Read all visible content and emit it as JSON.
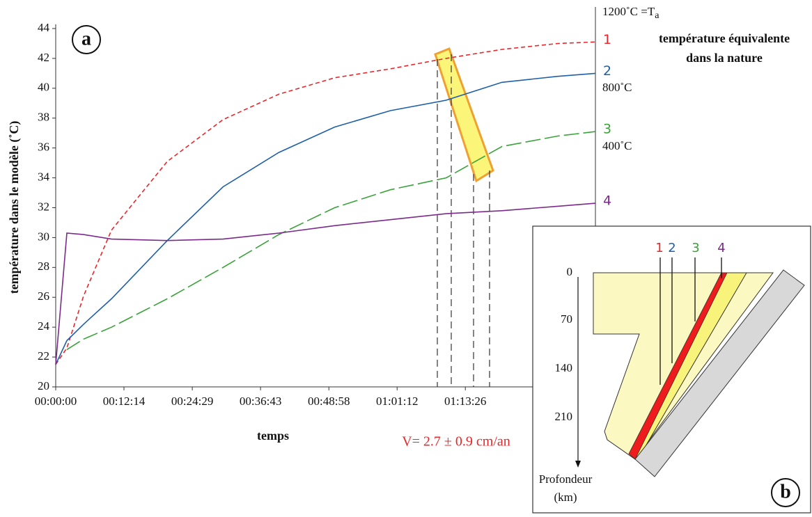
{
  "chart_data": {
    "type": "line",
    "ylabel": "température dans le modèle (˚C)",
    "xlabel": "temps",
    "panel_label": "a",
    "x": [
      0,
      120,
      300,
      600,
      1200,
      1800,
      2400,
      3000,
      3600,
      4200,
      4800,
      5400,
      5805
    ],
    "xlim": [
      0,
      5805
    ],
    "xticks": [
      {
        "value": 0,
        "label": "00:00:00"
      },
      {
        "value": 734,
        "label": "00:12:14"
      },
      {
        "value": 1469,
        "label": "00:24:29"
      },
      {
        "value": 2203,
        "label": "00:36:43"
      },
      {
        "value": 2938,
        "label": "00:48:58"
      },
      {
        "value": 3672,
        "label": "01:01:12"
      },
      {
        "value": 4406,
        "label": "01:13:26"
      }
    ],
    "ylim": [
      20,
      44
    ],
    "yticks": [
      20,
      22,
      24,
      26,
      28,
      30,
      32,
      34,
      36,
      38,
      40,
      42,
      44
    ],
    "grid": false,
    "series": [
      {
        "name": "1",
        "color": "#e8262a",
        "dash": "6,4",
        "values": [
          21.5,
          22.6,
          26.1,
          30.5,
          35.1,
          37.9,
          39.6,
          40.7,
          41.3,
          42.0,
          42.6,
          43.0,
          43.1
        ]
      },
      {
        "name": "2",
        "color": "#1f5fa8",
        "dash": "none",
        "values": [
          21.5,
          23.1,
          24.2,
          25.9,
          29.8,
          33.4,
          35.7,
          37.4,
          38.5,
          39.2,
          40.4,
          40.8,
          41.0
        ]
      },
      {
        "name": "3",
        "color": "#3aa23a",
        "dash": "22,6",
        "values": [
          null,
          22.5,
          23.2,
          24.0,
          25.9,
          28.0,
          30.2,
          32.0,
          33.2,
          34.0,
          36.1,
          36.8,
          37.1
        ]
      },
      {
        "name": "4",
        "color": "#7b2a8c",
        "dash": "none",
        "values": [
          21.5,
          30.3,
          30.2,
          29.9,
          29.8,
          29.9,
          30.3,
          30.8,
          31.2,
          31.6,
          31.8,
          32.1,
          32.3
        ]
      }
    ],
    "right_labels": [
      [
        "1200˚C =T",
        "a"
      ],
      [
        "800˚C"
      ],
      [
        "400˚C"
      ]
    ],
    "annotation": [
      "température équivalente",
      "dans la nature"
    ],
    "velocity": "V= 2.7 ± 0.9 cm/an"
  },
  "inset": {
    "panel_label": "b",
    "labels": [
      "1",
      "2",
      "3",
      "4"
    ],
    "depth_ticks": [
      "0",
      "70",
      "140",
      "210"
    ],
    "axis_label": [
      "Profondeur",
      "(km)"
    ]
  }
}
